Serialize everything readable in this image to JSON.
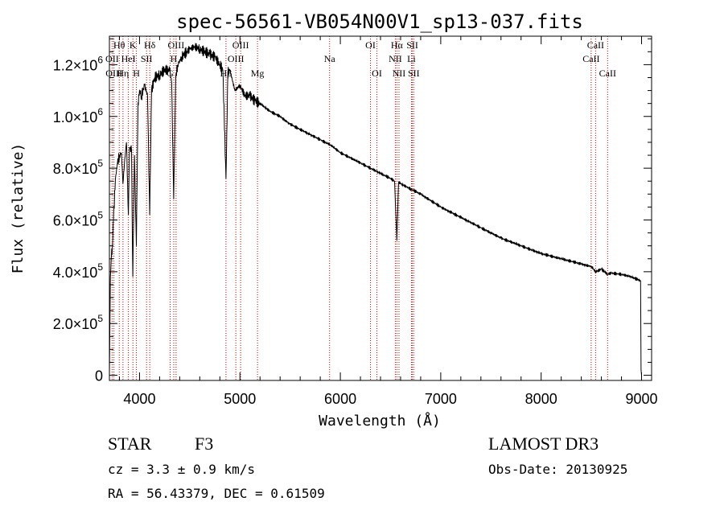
{
  "chart_data": {
    "type": "line",
    "title": "spec-56561-VB054N00V1_sp13-037.fits",
    "xlabel": "Wavelength (Å)",
    "ylabel": "Flux (relative)",
    "xlim": [
      3700,
      9100
    ],
    "ylim": [
      -20000,
      1310000
    ],
    "x_ticks": [
      4000,
      5000,
      6000,
      7000,
      8000,
      9000
    ],
    "x_tick_labels": [
      "4000",
      "5000",
      "6000",
      "7000",
      "8000",
      "9000"
    ],
    "y_ticks": [
      0,
      200000,
      400000,
      600000,
      800000,
      1000000,
      1200000
    ],
    "y_tick_labels": [
      {
        "mantissa": "0",
        "exp": ""
      },
      {
        "mantissa": "2.0×10",
        "exp": "5"
      },
      {
        "mantissa": "4.0×10",
        "exp": "5"
      },
      {
        "mantissa": "6.0×10",
        "exp": "5"
      },
      {
        "mantissa": "8.0×10",
        "exp": "5"
      },
      {
        "mantissa": "1.0×10",
        "exp": "6"
      },
      {
        "mantissa": "1.2×10",
        "exp": "6"
      }
    ],
    "series": [
      {
        "name": "flux",
        "x": [
          3700,
          3710,
          3720,
          3730,
          3740,
          3760,
          3780,
          3800,
          3820,
          3835,
          3850,
          3870,
          3889,
          3900,
          3920,
          3933,
          3950,
          3968,
          3985,
          4000,
          4020,
          4050,
          4080,
          4101,
          4120,
          4150,
          4200,
          4250,
          4300,
          4320,
          4340,
          4360,
          4380,
          4420,
          4470,
          4500,
          4550,
          4600,
          4650,
          4700,
          4750,
          4800,
          4830,
          4861,
          4880,
          4900,
          4950,
          5000,
          5050,
          5100,
          5150,
          5200,
          5300,
          5400,
          5500,
          5600,
          5700,
          5800,
          5900,
          6000,
          6100,
          6200,
          6300,
          6400,
          6500,
          6540,
          6563,
          6580,
          6600,
          6700,
          6800,
          7000,
          7200,
          7400,
          7600,
          7800,
          8000,
          8200,
          8400,
          8500,
          8542,
          8600,
          8662,
          8700,
          8800,
          8900,
          8990,
          8995,
          9000
        ],
        "y": [
          0,
          380000,
          460000,
          500000,
          600000,
          760000,
          820000,
          850000,
          860000,
          740000,
          820000,
          900000,
          620000,
          880000,
          870000,
          380000,
          850000,
          500000,
          1050000,
          1100000,
          1080000,
          1120000,
          1080000,
          620000,
          1100000,
          1150000,
          1160000,
          1180000,
          1180000,
          1130000,
          680000,
          1150000,
          1200000,
          1230000,
          1250000,
          1260000,
          1270000,
          1260000,
          1250000,
          1240000,
          1230000,
          1200000,
          1180000,
          760000,
          1170000,
          1180000,
          1100000,
          1120000,
          1080000,
          1080000,
          1060000,
          1050000,
          1020000,
          1000000,
          970000,
          950000,
          930000,
          910000,
          890000,
          860000,
          840000,
          820000,
          800000,
          780000,
          760000,
          750000,
          520000,
          745000,
          740000,
          720000,
          700000,
          650000,
          610000,
          570000,
          530000,
          500000,
          470000,
          450000,
          430000,
          420000,
          400000,
          410000,
          390000,
          395000,
          390000,
          380000,
          365000,
          20000,
          0
        ]
      }
    ],
    "spectral_lines": [
      {
        "name": "Hθ",
        "wl": 3798,
        "row": 0
      },
      {
        "name": "OII",
        "wl": 3727,
        "row": 1
      },
      {
        "name": "OIII",
        "wl": 3745,
        "row": 2
      },
      {
        "name": "K",
        "wl": 3934,
        "row": 0
      },
      {
        "name": "HeI",
        "wl": 3889,
        "row": 1
      },
      {
        "name": "Hη",
        "wl": 3835,
        "row": 2
      },
      {
        "name": "Hδ",
        "wl": 4102,
        "row": 0
      },
      {
        "name": "SII",
        "wl": 4070,
        "row": 1
      },
      {
        "name": "H",
        "wl": 3969,
        "row": 2
      },
      {
        "name": "OIII",
        "wl": 4364,
        "row": 0
      },
      {
        "name": "H",
        "wl": 4341,
        "row": 1
      },
      {
        "name": "G",
        "wl": 4305,
        "row": 2
      },
      {
        "name": "OIII",
        "wl": 5007,
        "row": 0
      },
      {
        "name": "OIII",
        "wl": 4959,
        "row": 1
      },
      {
        "name": "Hβ",
        "wl": 4861,
        "row": 2
      },
      {
        "name": "Mg",
        "wl": 5175,
        "row": 2
      },
      {
        "name": "Na",
        "wl": 5893,
        "row": 1
      },
      {
        "name": "OI",
        "wl": 6300,
        "row": 0
      },
      {
        "name": "OI",
        "wl": 6364,
        "row": 2
      },
      {
        "name": "Hα",
        "wl": 6563,
        "row": 0
      },
      {
        "name": "NII",
        "wl": 6548,
        "row": 1
      },
      {
        "name": "NII",
        "wl": 6584,
        "row": 2
      },
      {
        "name": "SII",
        "wl": 6717,
        "row": 0
      },
      {
        "name": "Li",
        "wl": 6708,
        "row": 1
      },
      {
        "name": "SII",
        "wl": 6731,
        "row": 2
      },
      {
        "name": "CaII",
        "wl": 8542,
        "row": 0
      },
      {
        "name": "CaII",
        "wl": 8498,
        "row": 1
      },
      {
        "name": "CaII",
        "wl": 8662,
        "row": 2
      }
    ]
  },
  "info": {
    "class_label": "STAR",
    "subclass": "F3",
    "cz": "cz = 3.3 ± 0.9 km/s",
    "radec": "RA =  56.43379, DEC =   0.61509",
    "survey": "LAMOST DR3",
    "obs_date": "Obs-Date: 20130925"
  },
  "colors": {
    "spectrum": "#000000",
    "line_markers": "#cc0000",
    "axes": "#000000"
  }
}
